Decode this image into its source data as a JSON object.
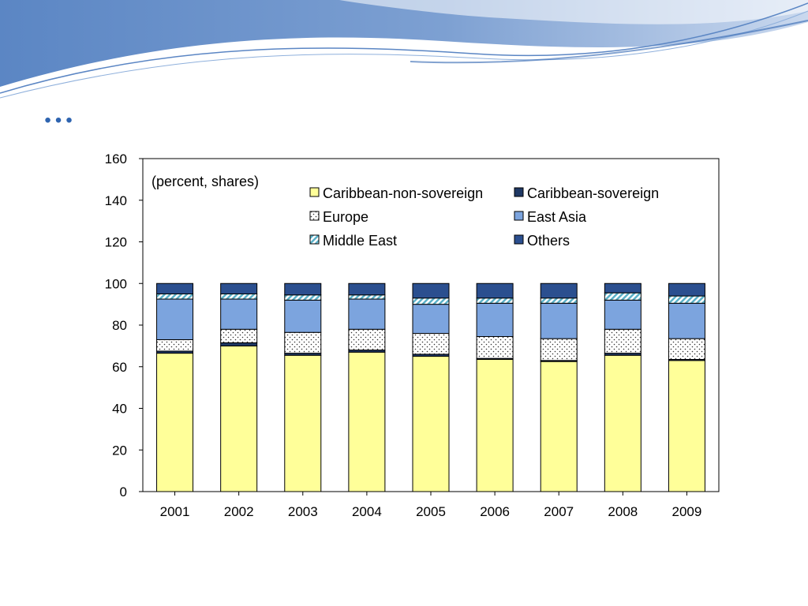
{
  "slide": {
    "title": "…"
  },
  "colors": {
    "banner_dark": "#5b86c4",
    "banner_light": "#a9c1e2",
    "title": "#2e64b0"
  },
  "chart_data": {
    "type": "bar",
    "stacked": true,
    "annotation": "(percent, shares)",
    "categories": [
      "2001",
      "2002",
      "2003",
      "2004",
      "2005",
      "2006",
      "2007",
      "2008",
      "2009"
    ],
    "ylim": [
      0,
      160
    ],
    "yticks": [
      0,
      20,
      40,
      60,
      80,
      100,
      120,
      140,
      160
    ],
    "xlabel": "",
    "ylabel": "",
    "legend_position": "top-right",
    "series": [
      {
        "name": "Caribbean-non-sovereign",
        "pattern": "solid",
        "color": "#ffff99",
        "values": [
          66.5,
          70,
          65.5,
          67,
          65,
          63.5,
          62.5,
          65.5,
          63
        ]
      },
      {
        "name": "Caribbean-sovereign",
        "pattern": "solid",
        "color": "#1f3864",
        "values": [
          1,
          1.5,
          1,
          1,
          1,
          0.5,
          0.5,
          1,
          0.5
        ]
      },
      {
        "name": "Europe",
        "pattern": "dots",
        "color": "#ffffff",
        "values": [
          5.5,
          6.5,
          10,
          10,
          10,
          10.5,
          10.5,
          11.5,
          10
        ]
      },
      {
        "name": "East Asia",
        "pattern": "solid",
        "color": "#7ca4de",
        "values": [
          19.5,
          14.5,
          15.5,
          14.5,
          14,
          16,
          17,
          14,
          17
        ]
      },
      {
        "name": "Middle East",
        "pattern": "hatch",
        "color": "#5ab0c8",
        "values": [
          2.5,
          2.5,
          2.5,
          2,
          3,
          2.5,
          2.5,
          3.5,
          3.5
        ]
      },
      {
        "name": "Others",
        "pattern": "solid",
        "color": "#2b4f8f",
        "values": [
          5,
          5,
          5.5,
          5.5,
          7,
          7,
          7,
          4.5,
          6
        ]
      }
    ]
  }
}
